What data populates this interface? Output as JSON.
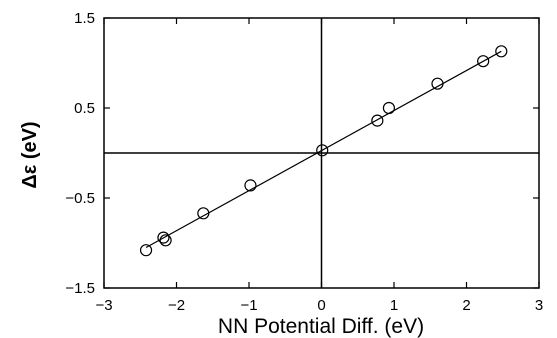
{
  "chart_data": {
    "type": "scatter",
    "title": "",
    "xlabel": "NN Potential Diff. (eV)",
    "ylabel": "Δε (eV)",
    "xlim": [
      -3,
      3
    ],
    "ylim": [
      -1.5,
      1.5
    ],
    "x_ticks": [
      -3,
      -2,
      -1,
      0,
      1,
      2,
      3
    ],
    "y_ticks": [
      -1.5,
      0.5,
      -0.5,
      1.5
    ],
    "x_tick_labels": [
      "−3",
      "−2",
      "−1",
      "0",
      "1",
      "2",
      "3"
    ],
    "y_tick_labels": [
      "1.5",
      "0.5",
      "−0.5",
      "−1.5"
    ],
    "y_tick_values": [
      1.5,
      0.5,
      -0.5,
      -1.5
    ],
    "grid": false,
    "reference_lines": {
      "x": 0,
      "y": 0
    },
    "series": [
      {
        "points": [
          {
            "x": -2.42,
            "y": -1.08
          },
          {
            "x": -2.18,
            "y": -0.94
          },
          {
            "x": -2.15,
            "y": -0.97
          },
          {
            "x": -1.63,
            "y": -0.67
          },
          {
            "x": -0.98,
            "y": -0.36
          },
          {
            "x": 0.01,
            "y": 0.03
          },
          {
            "x": 0.77,
            "y": 0.36
          },
          {
            "x": 0.93,
            "y": 0.5
          },
          {
            "x": 1.6,
            "y": 0.77
          },
          {
            "x": 2.23,
            "y": 1.02
          },
          {
            "x": 2.48,
            "y": 1.13
          }
        ]
      }
    ],
    "fit_line": {
      "x": [
        -2.42,
        2.48
      ],
      "y": [
        -1.05,
        1.13
      ]
    }
  }
}
